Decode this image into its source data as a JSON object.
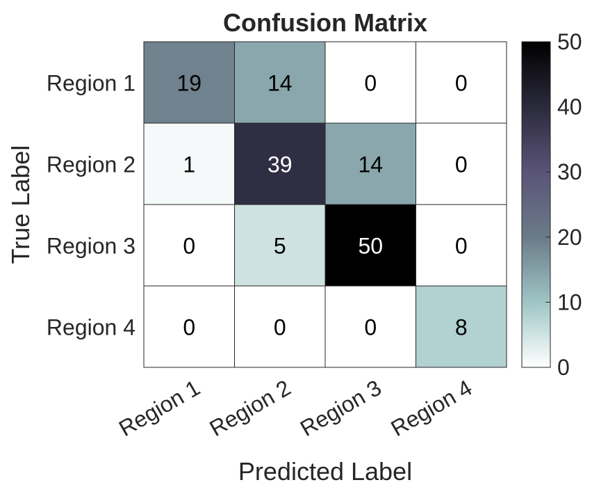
{
  "chart_data": {
    "type": "heatmap",
    "title": "Confusion Matrix",
    "xlabel": "Predicted Label",
    "ylabel": "True Label",
    "row_labels": [
      "Region 1",
      "Region 2",
      "Region 3",
      "Region 4"
    ],
    "col_labels": [
      "Region 1",
      "Region 2",
      "Region 3",
      "Region 4"
    ],
    "values": [
      [
        19,
        14,
        0,
        0
      ],
      [
        1,
        39,
        14,
        0
      ],
      [
        0,
        5,
        50,
        0
      ],
      [
        0,
        0,
        0,
        8
      ]
    ],
    "colorbar": {
      "min": 0,
      "max": 50,
      "ticks": [
        0,
        10,
        20,
        30,
        40,
        50
      ],
      "tick_labels": [
        "0",
        "10",
        "20",
        "30",
        "40",
        "50"
      ]
    },
    "colormap": [
      "#ffffff",
      "#9fc5c5",
      "#6b7b88",
      "#5a5478",
      "#2b2a3c",
      "#000000"
    ],
    "grid": true
  }
}
